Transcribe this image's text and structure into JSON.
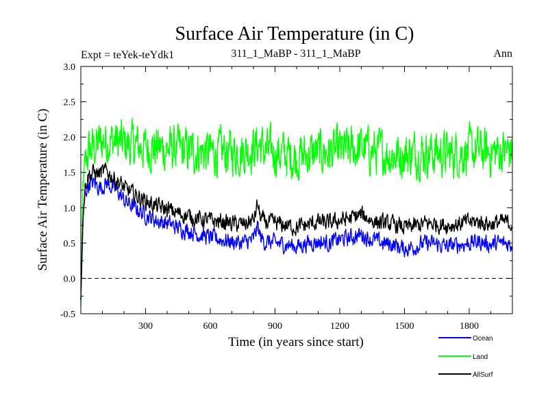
{
  "chart_data": {
    "type": "line",
    "title": "Surface Air Temperature (in C)",
    "subtitle_left": "Expt = teYek-teYdk1",
    "subtitle_center": "311_1_MaBP - 311_1_MaBP",
    "subtitle_right": "Ann",
    "xlabel": "Time (in years since start)",
    "ylabel": "Surface Air Temperature (in C)",
    "xlim": [
      0,
      2000
    ],
    "ylim": [
      -0.5,
      3.0
    ],
    "xticks": [
      300,
      600,
      900,
      1200,
      1500,
      1800
    ],
    "xtick_labels": [
      "300",
      "600",
      "900",
      "1200",
      "1500",
      "1800"
    ],
    "yticks": [
      -0.5,
      0.0,
      0.5,
      1.0,
      1.5,
      2.0,
      2.5,
      3.0
    ],
    "ytick_labels": [
      "-0.5",
      "0.0",
      "0.5",
      "1.0",
      "1.5",
      "2.0",
      "2.5",
      "3.0"
    ],
    "reference_line": 0.0,
    "legend_position": "bottom-right",
    "series": [
      {
        "name": "Ocean",
        "color": "#0000ff",
        "x": [
          0,
          10,
          20,
          30,
          40,
          60,
          80,
          100,
          120,
          140,
          160,
          180,
          200,
          250,
          300,
          350,
          400,
          450,
          500,
          550,
          600,
          650,
          700,
          750,
          800,
          820,
          830,
          850,
          900,
          950,
          1000,
          1050,
          1100,
          1150,
          1200,
          1250,
          1300,
          1350,
          1400,
          1450,
          1500,
          1550,
          1600,
          1650,
          1700,
          1750,
          1800,
          1850,
          1900,
          1950,
          2000
        ],
        "values": [
          -0.3,
          0.8,
          1.2,
          1.3,
          1.35,
          1.35,
          1.3,
          1.3,
          1.35,
          1.3,
          1.25,
          1.2,
          1.1,
          1.0,
          0.9,
          0.82,
          0.78,
          0.72,
          0.68,
          0.62,
          0.58,
          0.55,
          0.52,
          0.5,
          0.55,
          0.75,
          0.6,
          0.52,
          0.5,
          0.48,
          0.45,
          0.5,
          0.52,
          0.5,
          0.55,
          0.58,
          0.62,
          0.55,
          0.5,
          0.48,
          0.42,
          0.45,
          0.5,
          0.48,
          0.45,
          0.48,
          0.5,
          0.52,
          0.48,
          0.5,
          0.48
        ]
      },
      {
        "name": "Land",
        "color": "#00ff00",
        "x": [
          0,
          10,
          20,
          30,
          40,
          60,
          80,
          100,
          150,
          200,
          250,
          300,
          350,
          400,
          450,
          500,
          550,
          600,
          650,
          700,
          750,
          800,
          830,
          850,
          900,
          950,
          1000,
          1050,
          1100,
          1150,
          1200,
          1250,
          1300,
          1350,
          1400,
          1450,
          1500,
          1550,
          1600,
          1650,
          1700,
          1750,
          1800,
          1850,
          1900,
          1950,
          2000
        ],
        "values": [
          -0.4,
          1.3,
          1.6,
          1.75,
          1.8,
          1.85,
          1.9,
          1.95,
          1.95,
          1.9,
          1.88,
          1.85,
          1.85,
          1.83,
          1.82,
          1.8,
          1.8,
          1.78,
          1.78,
          1.8,
          1.8,
          1.85,
          1.9,
          1.8,
          1.78,
          1.75,
          1.72,
          1.75,
          1.78,
          1.78,
          1.8,
          1.82,
          1.85,
          1.8,
          1.78,
          1.75,
          1.75,
          1.78,
          1.78,
          1.78,
          1.76,
          1.78,
          1.8,
          1.8,
          1.78,
          1.8,
          1.8
        ]
      },
      {
        "name": "AllSurf",
        "color": "#000000",
        "x": [
          0,
          10,
          20,
          30,
          40,
          60,
          80,
          100,
          120,
          140,
          160,
          180,
          200,
          250,
          300,
          350,
          400,
          450,
          500,
          550,
          600,
          650,
          700,
          750,
          800,
          820,
          830,
          850,
          900,
          950,
          1000,
          1050,
          1100,
          1150,
          1200,
          1250,
          1300,
          1350,
          1400,
          1450,
          1500,
          1550,
          1600,
          1650,
          1700,
          1750,
          1800,
          1850,
          1900,
          1950,
          2000
        ],
        "values": [
          -0.3,
          0.9,
          1.3,
          1.42,
          1.48,
          1.5,
          1.48,
          1.5,
          1.52,
          1.45,
          1.4,
          1.35,
          1.28,
          1.18,
          1.1,
          1.02,
          0.98,
          0.92,
          0.88,
          0.84,
          0.82,
          0.8,
          0.78,
          0.76,
          0.82,
          1.05,
          0.88,
          0.8,
          0.78,
          0.75,
          0.72,
          0.76,
          0.8,
          0.78,
          0.82,
          0.85,
          0.9,
          0.82,
          0.78,
          0.76,
          0.72,
          0.74,
          0.78,
          0.77,
          0.75,
          0.77,
          0.8,
          0.8,
          0.77,
          0.8,
          0.78
        ]
      }
    ]
  }
}
